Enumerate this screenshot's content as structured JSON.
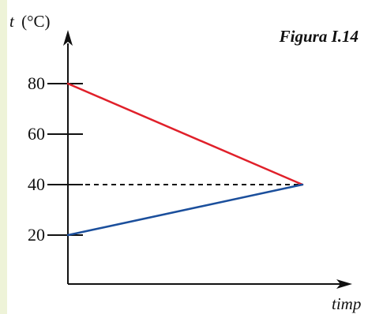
{
  "figure_label": "Figura I.14",
  "chart_data": {
    "type": "line",
    "title": "",
    "ylabel_var": "t",
    "ylabel_unit": "(°C)",
    "xlabel": "timp",
    "y_ticks": [
      20,
      40,
      60,
      80
    ],
    "x_range": [
      0,
      1
    ],
    "series": [
      {
        "color": "#e0202a",
        "style": "solid",
        "x": [
          0,
          1
        ],
        "y": [
          80,
          40
        ]
      },
      {
        "color": "#1b4f9c",
        "style": "solid",
        "x": [
          0,
          1
        ],
        "y": [
          20,
          40
        ]
      }
    ],
    "guides": [
      {
        "color": "#111111",
        "style": "dashed",
        "x": [
          0,
          1
        ],
        "y": [
          40,
          40
        ]
      }
    ]
  }
}
